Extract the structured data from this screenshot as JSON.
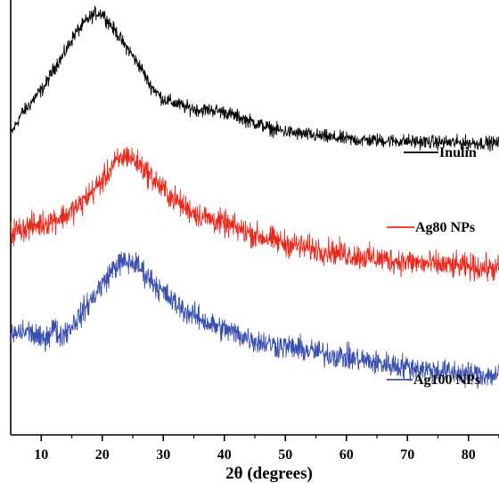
{
  "chart_data": {
    "type": "line",
    "title": "",
    "xlabel": "2θ (degrees)",
    "ylabel": "",
    "xlim": [
      5,
      85
    ],
    "ylim": [
      0,
      100
    ],
    "x_ticks": [
      10,
      20,
      30,
      40,
      50,
      60,
      70,
      80
    ],
    "grid": false,
    "legend_placement": "inline, right of each curve",
    "series": [
      {
        "name": "Inulin",
        "color": "#000000",
        "noise": 1.4,
        "x": [
          5,
          7,
          10,
          13,
          16,
          18,
          19,
          20,
          21,
          22,
          24,
          26,
          28,
          30,
          32,
          34,
          36,
          38,
          40,
          42,
          44,
          46,
          48,
          50,
          52,
          55,
          58,
          62,
          66,
          70,
          74,
          78,
          82,
          85
        ],
        "y": [
          70,
          75,
          80,
          87,
          94,
          97,
          98,
          98,
          96,
          94,
          90,
          86,
          81,
          78,
          77,
          76,
          75.5,
          75.5,
          75,
          74,
          73,
          72,
          71,
          70.5,
          70,
          69.5,
          69,
          68.5,
          68.4,
          68.2,
          68,
          67.9,
          67.8,
          67.8
        ]
      },
      {
        "name": "Ag80 NPs",
        "color": "#e8291c",
        "noise": 2.6,
        "x": [
          5,
          7,
          10,
          12,
          14,
          16,
          18,
          20,
          22,
          24,
          26,
          28,
          30,
          32,
          34,
          36,
          38,
          40,
          43,
          46,
          50,
          54,
          58,
          62,
          66,
          70,
          74,
          78,
          82,
          85
        ],
        "y": [
          47,
          48,
          49,
          50,
          51,
          53,
          56,
          59,
          63,
          65,
          63,
          60,
          57,
          54.5,
          52.5,
          51,
          50,
          49,
          47.5,
          46,
          44.5,
          43.3,
          42.5,
          41.5,
          40.8,
          40.2,
          39.6,
          39.2,
          38.8,
          38.5
        ]
      },
      {
        "name": "Ag100 NPs",
        "color": "#3a4fae",
        "noise": 2.5,
        "x": [
          5,
          7,
          8,
          10,
          11,
          12,
          13,
          14,
          16,
          18,
          20,
          22,
          23,
          24,
          25,
          26,
          28,
          30,
          32,
          34,
          36,
          38,
          40,
          43,
          46,
          50,
          54,
          58,
          62,
          66,
          70,
          74,
          78,
          82,
          85
        ],
        "y": [
          23,
          24,
          24,
          22,
          23,
          25,
          23,
          24,
          27,
          31,
          35,
          39,
          40,
          40,
          40,
          39,
          36,
          33,
          30.5,
          28.5,
          27,
          25.5,
          24.5,
          23,
          21.5,
          20.5,
          19.5,
          18.5,
          17.5,
          16.5,
          15.8,
          15,
          14.4,
          14,
          13.8
        ]
      }
    ]
  }
}
